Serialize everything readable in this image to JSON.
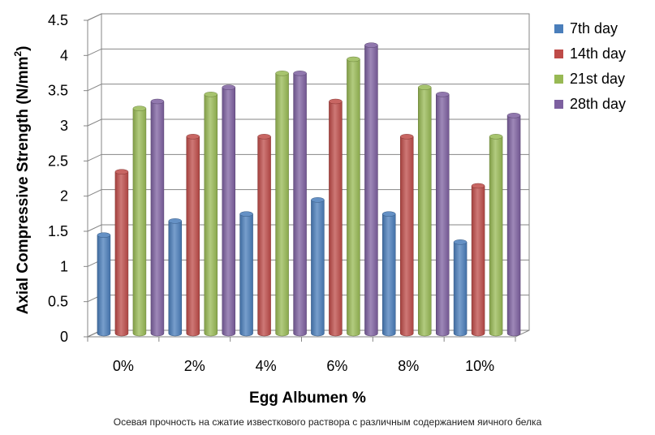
{
  "caption": "Осевая прочность на сжатие известкового раствора с различным содержанием яичного белка",
  "chart_data": {
    "type": "bar",
    "style": "3d-clustered",
    "title": "",
    "xlabel": "Egg Albumen %",
    "ylabel": "Axial Compressive Strength (N/mm",
    "ylabel_superscript": "2",
    "ylabel_suffix": ")",
    "categories": [
      "0%",
      "2%",
      "4%",
      "6%",
      "8%",
      "10%"
    ],
    "ylim": [
      0,
      4.5
    ],
    "yticks": [
      "0",
      "0.5",
      "1",
      "1.5",
      "2",
      "2.5",
      "3",
      "3.5",
      "4",
      "4.5"
    ],
    "grid": true,
    "legend": "right",
    "series": [
      {
        "name": "7th day",
        "color": "#4a7ebb",
        "values": [
          1.4,
          1.6,
          1.7,
          1.9,
          1.7,
          1.3
        ]
      },
      {
        "name": "14th day",
        "color": "#be4b48",
        "values": [
          2.3,
          2.8,
          2.8,
          3.3,
          2.8,
          2.1
        ]
      },
      {
        "name": "21st day",
        "color": "#98b954",
        "values": [
          3.2,
          3.4,
          3.7,
          3.9,
          3.5,
          2.8
        ]
      },
      {
        "name": "28th day",
        "color": "#7d60a0",
        "values": [
          3.3,
          3.5,
          3.7,
          4.1,
          3.4,
          3.1
        ]
      }
    ]
  }
}
